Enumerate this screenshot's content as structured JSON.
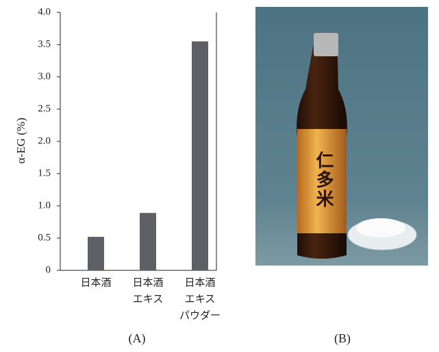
{
  "chart_data": {
    "type": "bar",
    "ylabel": "α-EG (%)",
    "categories": [
      [
        "日本酒"
      ],
      [
        "日本酒",
        "エキス"
      ],
      [
        "日本酒",
        "エキス",
        "パウダー"
      ]
    ],
    "values": [
      0.52,
      0.89,
      3.55
    ],
    "color": "#5f6065",
    "ylim": [
      0,
      4.0
    ],
    "yticks": [
      0,
      0.5,
      {
        "value": 1.0,
        "label": "1.0"
      },
      1.5,
      {
        "value": 2.0,
        "label": "2.0"
      },
      2.5,
      {
        "value": 3.0,
        "label": "3.0"
      },
      3.5,
      {
        "value": 4.0,
        "label": "4.0"
      }
    ],
    "grid": false,
    "panel_label": "(A)"
  },
  "photo": {
    "bottle_label": "仁多米",
    "panel_label": "(B)"
  }
}
